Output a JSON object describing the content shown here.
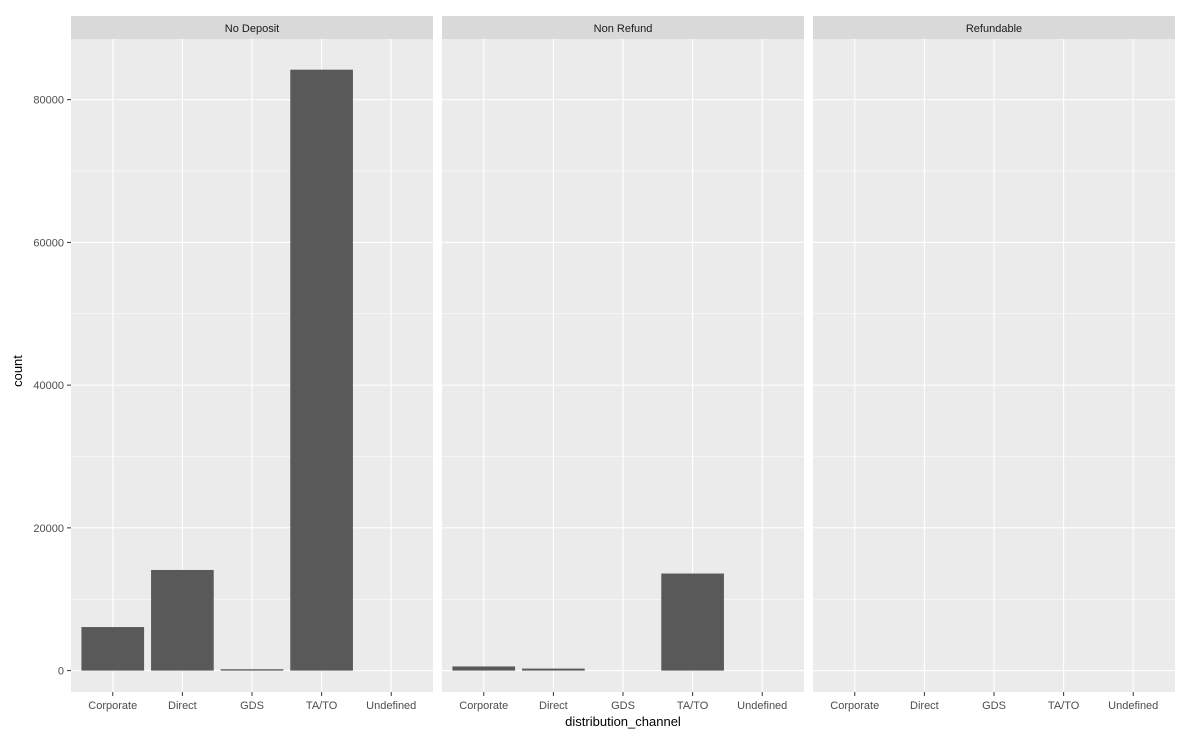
{
  "chart_data": {
    "type": "bar",
    "facet_by": "deposit_type",
    "xlabel": "distribution_channel",
    "ylabel": "count",
    "categories": [
      "Corporate",
      "Direct",
      "GDS",
      "TA/TO",
      "Undefined"
    ],
    "ylim": [
      -3000,
      88500
    ],
    "y_ticks": [
      0,
      20000,
      40000,
      60000,
      80000
    ],
    "y_tick_labels": [
      "0",
      "20000",
      "40000",
      "60000",
      "80000"
    ],
    "grid": true,
    "legend": "none",
    "facets": [
      {
        "name": "No Deposit",
        "values": [
          6100,
          14100,
          190,
          84200,
          0
        ]
      },
      {
        "name": "Non Refund",
        "values": [
          580,
          280,
          0,
          13600,
          0
        ]
      },
      {
        "name": "Refundable",
        "values": [
          0,
          0,
          0,
          0,
          0
        ]
      }
    ]
  },
  "colors": {
    "panel_background": "#ebebeb",
    "strip_background": "#d9d9d9",
    "grid_major": "#ffffff",
    "bar_fill": "#595959"
  }
}
